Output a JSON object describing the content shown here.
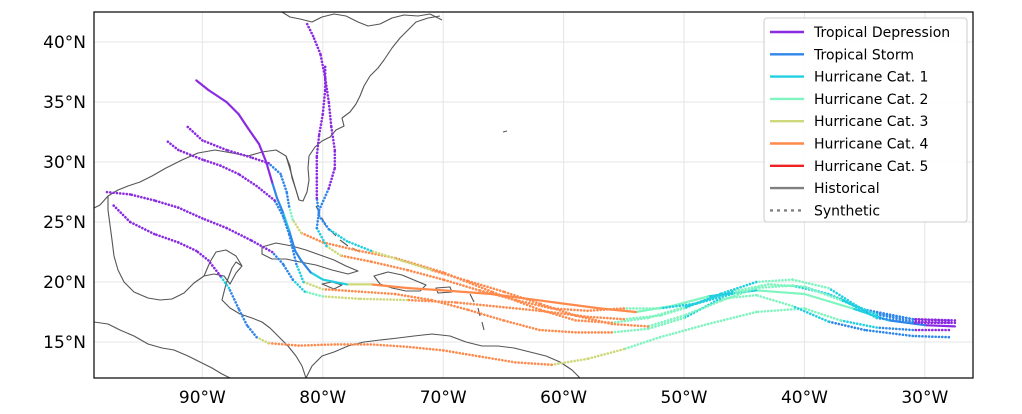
{
  "map": {
    "lon_range": [
      -99,
      -26
    ],
    "lat_range": [
      12,
      42.5
    ],
    "lat_ticks": [
      {
        "lat": 40,
        "label": "40°N"
      },
      {
        "lat": 35,
        "label": "35°N"
      },
      {
        "lat": 30,
        "label": "30°N"
      },
      {
        "lat": 25,
        "label": "25°N"
      },
      {
        "lat": 20,
        "label": "20°N"
      },
      {
        "lat": 15,
        "label": "15°N"
      }
    ],
    "lon_ticks": [
      {
        "lon": -90,
        "label": "90°W"
      },
      {
        "lon": -80,
        "label": "80°W"
      },
      {
        "lon": -70,
        "label": "70°W"
      },
      {
        "lon": -60,
        "label": "60°W"
      },
      {
        "lon": -50,
        "label": "50°W"
      },
      {
        "lon": -40,
        "label": "40°W"
      },
      {
        "lon": -30,
        "label": "30°W"
      }
    ],
    "grid": true,
    "colors": {
      "coastline": "#555555",
      "grid": "#e6e6e6",
      "frame": "#000000"
    },
    "intensity_scale": [
      {
        "label": "Tropical Depression",
        "color": "#8a2be2"
      },
      {
        "label": "Tropical Storm",
        "color": "#2f86eb"
      },
      {
        "label": "Hurricane Cat. 1",
        "color": "#22cfe0"
      },
      {
        "label": "Hurricane Cat. 2",
        "color": "#7ff5c0"
      },
      {
        "label": "Hurricane Cat. 3",
        "color": "#cfd87a"
      },
      {
        "label": "Hurricane Cat. 4",
        "color": "#ff8a4c"
      },
      {
        "label": "Hurricane Cat. 5",
        "color": "#ee2222"
      }
    ],
    "legend": {
      "placement": "top-right",
      "entries": [
        {
          "label": "Tropical Depression",
          "color": "#8a2be2",
          "style": "solid"
        },
        {
          "label": "Tropical Storm",
          "color": "#2f86eb",
          "style": "solid"
        },
        {
          "label": "Hurricane Cat. 1",
          "color": "#22cfe0",
          "style": "solid"
        },
        {
          "label": "Hurricane Cat. 2",
          "color": "#7ff5c0",
          "style": "solid"
        },
        {
          "label": "Hurricane Cat. 3",
          "color": "#cfd87a",
          "style": "solid"
        },
        {
          "label": "Hurricane Cat. 4",
          "color": "#ff8a4c",
          "style": "solid"
        },
        {
          "label": "Hurricane Cat. 5",
          "color": "#ee2222",
          "style": "solid"
        },
        {
          "label": "Historical",
          "color": "#808080",
          "style": "solid"
        },
        {
          "label": "Synthetic",
          "color": "#808080",
          "style": "dotted"
        }
      ]
    },
    "tracks": [
      {
        "name": "historical",
        "style": "solid",
        "points": [
          [
            -27.5,
            16.3,
            0
          ],
          [
            -30,
            16.4,
            1
          ],
          [
            -33,
            16.8,
            2
          ],
          [
            -36,
            17.8,
            3
          ],
          [
            -40,
            19.0,
            3
          ],
          [
            -44,
            19.3,
            2
          ],
          [
            -48,
            18.8,
            3
          ],
          [
            -51,
            18.0,
            3
          ],
          [
            -54,
            17.5,
            5
          ],
          [
            -57,
            17.8,
            5
          ],
          [
            -60,
            18.2,
            5
          ],
          [
            -63,
            18.6,
            5
          ],
          [
            -66,
            19.0,
            5
          ],
          [
            -70,
            19.3,
            5
          ],
          [
            -73,
            19.5,
            5
          ],
          [
            -76,
            19.8,
            4
          ],
          [
            -78,
            19.8,
            2
          ],
          [
            -80,
            20.2,
            2
          ],
          [
            -81,
            20.8,
            1
          ],
          [
            -81.8,
            21.8,
            1
          ],
          [
            -82.3,
            22.6,
            1
          ],
          [
            -82.8,
            24.3,
            2
          ],
          [
            -83.3,
            25.8,
            1
          ],
          [
            -83.8,
            27.0,
            1
          ],
          [
            -84.2,
            28.3,
            0
          ],
          [
            -84.7,
            30.0,
            0
          ],
          [
            -85.3,
            31.5,
            0
          ],
          [
            -86.2,
            32.8,
            0
          ],
          [
            -87.0,
            34.0,
            0
          ],
          [
            -88.0,
            35.0,
            0
          ],
          [
            -89.5,
            36.0,
            0
          ],
          [
            -90.5,
            36.8,
            0
          ]
        ]
      },
      {
        "name": "synthetic-1",
        "style": "dotted",
        "points": [
          [
            -27.5,
            16.6,
            0
          ],
          [
            -31,
            16.6,
            1
          ],
          [
            -34,
            17.0,
            2
          ],
          [
            -37,
            18.6,
            2
          ],
          [
            -40,
            19.6,
            3
          ],
          [
            -43,
            19.8,
            3
          ],
          [
            -46,
            19.2,
            2
          ],
          [
            -50,
            17.9,
            3
          ],
          [
            -53,
            17.0,
            3
          ],
          [
            -56,
            16.6,
            5
          ],
          [
            -59,
            16.8,
            5
          ],
          [
            -62,
            17.7,
            5
          ],
          [
            -66,
            19.2,
            5
          ],
          [
            -70,
            20.8,
            5
          ],
          [
            -74,
            22.0,
            5
          ],
          [
            -77,
            22.6,
            5
          ],
          [
            -80,
            23.3,
            5
          ],
          [
            -81.8,
            24.1,
            4
          ],
          [
            -82.5,
            25.2,
            3
          ],
          [
            -82.8,
            26.3,
            1
          ],
          [
            -83,
            27.5,
            1
          ],
          [
            -83.5,
            29.0,
            1
          ],
          [
            -84.5,
            29.9,
            0
          ],
          [
            -86,
            30.4,
            0
          ],
          [
            -88,
            31.0,
            0
          ],
          [
            -90,
            31.8,
            0
          ],
          [
            -91.3,
            33.0,
            0
          ]
        ]
      },
      {
        "name": "synthetic-2",
        "style": "dotted",
        "points": [
          [
            -27.5,
            16.8,
            0
          ],
          [
            -31,
            16.9,
            1
          ],
          [
            -35,
            17.6,
            2
          ],
          [
            -38,
            19.5,
            3
          ],
          [
            -41,
            20.2,
            3
          ],
          [
            -44,
            20.0,
            2
          ],
          [
            -47,
            19.0,
            2
          ],
          [
            -50,
            17.8,
            3
          ],
          [
            -52,
            17.2,
            3
          ],
          [
            -55,
            16.9,
            5
          ],
          [
            -58,
            17.1,
            5
          ],
          [
            -62,
            17.6,
            5
          ],
          [
            -65,
            17.9,
            5
          ],
          [
            -69,
            18.3,
            5
          ],
          [
            -73,
            18.5,
            4
          ],
          [
            -77,
            18.6,
            4
          ],
          [
            -80,
            18.8,
            3
          ],
          [
            -81.5,
            19.2,
            2
          ],
          [
            -82.5,
            20.2,
            1
          ],
          [
            -83.3,
            21.5,
            1
          ],
          [
            -84.2,
            22.5,
            0
          ],
          [
            -86,
            23.5,
            0
          ],
          [
            -88,
            24.5,
            0
          ],
          [
            -90,
            25.3,
            0
          ],
          [
            -92,
            26.2,
            0
          ],
          [
            -94,
            26.8,
            0
          ],
          [
            -96,
            27.3,
            0
          ],
          [
            -98,
            27.5,
            0
          ]
        ]
      },
      {
        "name": "synthetic-3",
        "style": "dotted",
        "points": [
          [
            -28,
            16.0,
            0
          ],
          [
            -31,
            16.0,
            1
          ],
          [
            -34,
            16.2,
            2
          ],
          [
            -37,
            16.8,
            3
          ],
          [
            -40,
            17.8,
            3
          ],
          [
            -44,
            17.5,
            3
          ],
          [
            -48,
            16.5,
            3
          ],
          [
            -52,
            15.4,
            3
          ],
          [
            -55,
            14.4,
            4
          ],
          [
            -58,
            13.6,
            4
          ],
          [
            -61,
            13.1,
            5
          ],
          [
            -64,
            13.3,
            5
          ],
          [
            -67,
            13.8,
            5
          ],
          [
            -70,
            14.3,
            5
          ],
          [
            -73,
            14.6,
            5
          ],
          [
            -76,
            14.8,
            5
          ],
          [
            -79,
            14.8,
            5
          ],
          [
            -82,
            14.7,
            5
          ],
          [
            -84.5,
            14.9,
            4
          ],
          [
            -85.5,
            15.4,
            1
          ],
          [
            -86.3,
            16.4,
            1
          ],
          [
            -87,
            17.8,
            1
          ],
          [
            -87.8,
            19.5,
            2
          ],
          [
            -88.5,
            20.5,
            0
          ],
          [
            -89.5,
            21.8,
            0
          ],
          [
            -90.5,
            22.6,
            0
          ],
          [
            -92,
            23.3,
            0
          ],
          [
            -94,
            24.0,
            0
          ],
          [
            -96,
            25.0,
            0
          ],
          [
            -97.5,
            26.5,
            0
          ]
        ]
      },
      {
        "name": "synthetic-4",
        "style": "dotted",
        "points": [
          [
            -28,
            15.4,
            1
          ],
          [
            -31,
            15.5,
            1
          ],
          [
            -35,
            16.0,
            1
          ],
          [
            -38,
            16.7,
            2
          ],
          [
            -41,
            18.0,
            3
          ],
          [
            -44,
            18.9,
            3
          ],
          [
            -47,
            18.6,
            2
          ],
          [
            -50,
            17.0,
            3
          ],
          [
            -53,
            16.1,
            3
          ],
          [
            -56,
            15.8,
            5
          ],
          [
            -59,
            15.8,
            5
          ],
          [
            -62,
            16.0,
            5
          ],
          [
            -65,
            16.8,
            5
          ],
          [
            -68,
            17.7,
            5
          ],
          [
            -71,
            18.5,
            5
          ],
          [
            -74,
            19.0,
            5
          ],
          [
            -77,
            19.2,
            5
          ],
          [
            -80,
            19.4,
            4
          ],
          [
            -81.6,
            20.0,
            2
          ],
          [
            -82.2,
            21.5,
            1
          ],
          [
            -82.8,
            24.0,
            1
          ],
          [
            -83.3,
            25.5,
            1
          ],
          [
            -84,
            26.8,
            0
          ],
          [
            -85.5,
            28.0,
            0
          ],
          [
            -87,
            29.0,
            0
          ],
          [
            -88.5,
            29.7,
            0
          ],
          [
            -90,
            30.2,
            0
          ],
          [
            -92,
            31.0,
            0
          ],
          [
            -93,
            31.8,
            0
          ]
        ]
      },
      {
        "name": "synthetic-5",
        "style": "dotted",
        "points": [
          [
            -28,
            16.8,
            0
          ],
          [
            -31,
            16.9,
            1
          ],
          [
            -35,
            17.7,
            2
          ],
          [
            -38,
            19.0,
            2
          ],
          [
            -41,
            19.7,
            3
          ],
          [
            -44,
            19.5,
            3
          ],
          [
            -47,
            18.4,
            3
          ],
          [
            -50,
            17.2,
            3
          ],
          [
            -53,
            16.3,
            5
          ],
          [
            -56,
            16.5,
            5
          ],
          [
            -59,
            17.2,
            5
          ],
          [
            -62,
            18.2,
            5
          ],
          [
            -65,
            19.2,
            5
          ],
          [
            -68,
            20.1,
            5
          ],
          [
            -71,
            21.0,
            4
          ],
          [
            -73.5,
            21.8,
            4
          ],
          [
            -76,
            22.6,
            2
          ],
          [
            -78,
            23.4,
            2
          ],
          [
            -79.5,
            24.4,
            1
          ],
          [
            -80.3,
            25.5,
            1
          ],
          [
            -80.5,
            27.0,
            0
          ],
          [
            -80.5,
            28.7,
            0
          ],
          [
            -80.5,
            30.5,
            0
          ],
          [
            -80.3,
            32.3,
            0
          ],
          [
            -80,
            34,
            0
          ],
          [
            -79.8,
            36,
            0
          ],
          [
            -79.8,
            38,
            0
          ]
        ]
      },
      {
        "name": "synthetic-6",
        "style": "dotted",
        "points": [
          [
            -28,
            16.6,
            0
          ],
          [
            -31,
            16.7,
            1
          ],
          [
            -34,
            17.3,
            2
          ],
          [
            -37,
            18.5,
            3
          ],
          [
            -40,
            19.6,
            3
          ],
          [
            -43,
            19.8,
            3
          ],
          [
            -46,
            19.0,
            2
          ],
          [
            -49,
            18.2,
            2
          ],
          [
            -52,
            17.8,
            3
          ],
          [
            -55,
            17.8,
            5
          ],
          [
            -58,
            17.6,
            5
          ],
          [
            -61,
            17.8,
            5
          ],
          [
            -64,
            18.5,
            5
          ],
          [
            -67,
            19.3,
            5
          ],
          [
            -70,
            20.2,
            5
          ],
          [
            -73,
            21.0,
            5
          ],
          [
            -76,
            21.7,
            5
          ],
          [
            -78.5,
            22.2,
            4
          ],
          [
            -79.7,
            23.0,
            2
          ],
          [
            -80.5,
            24.5,
            1
          ],
          [
            -80.3,
            26.0,
            1
          ],
          [
            -79.5,
            27.8,
            0
          ],
          [
            -79.0,
            29.5,
            0
          ],
          [
            -79.0,
            31.0,
            0
          ],
          [
            -79.3,
            33.0,
            0
          ],
          [
            -79.5,
            35.0,
            0
          ],
          [
            -79.8,
            37.0,
            0
          ],
          [
            -80.2,
            39.0,
            0
          ],
          [
            -80.8,
            40.5,
            0
          ],
          [
            -81.3,
            41.5,
            0
          ]
        ]
      }
    ]
  }
}
